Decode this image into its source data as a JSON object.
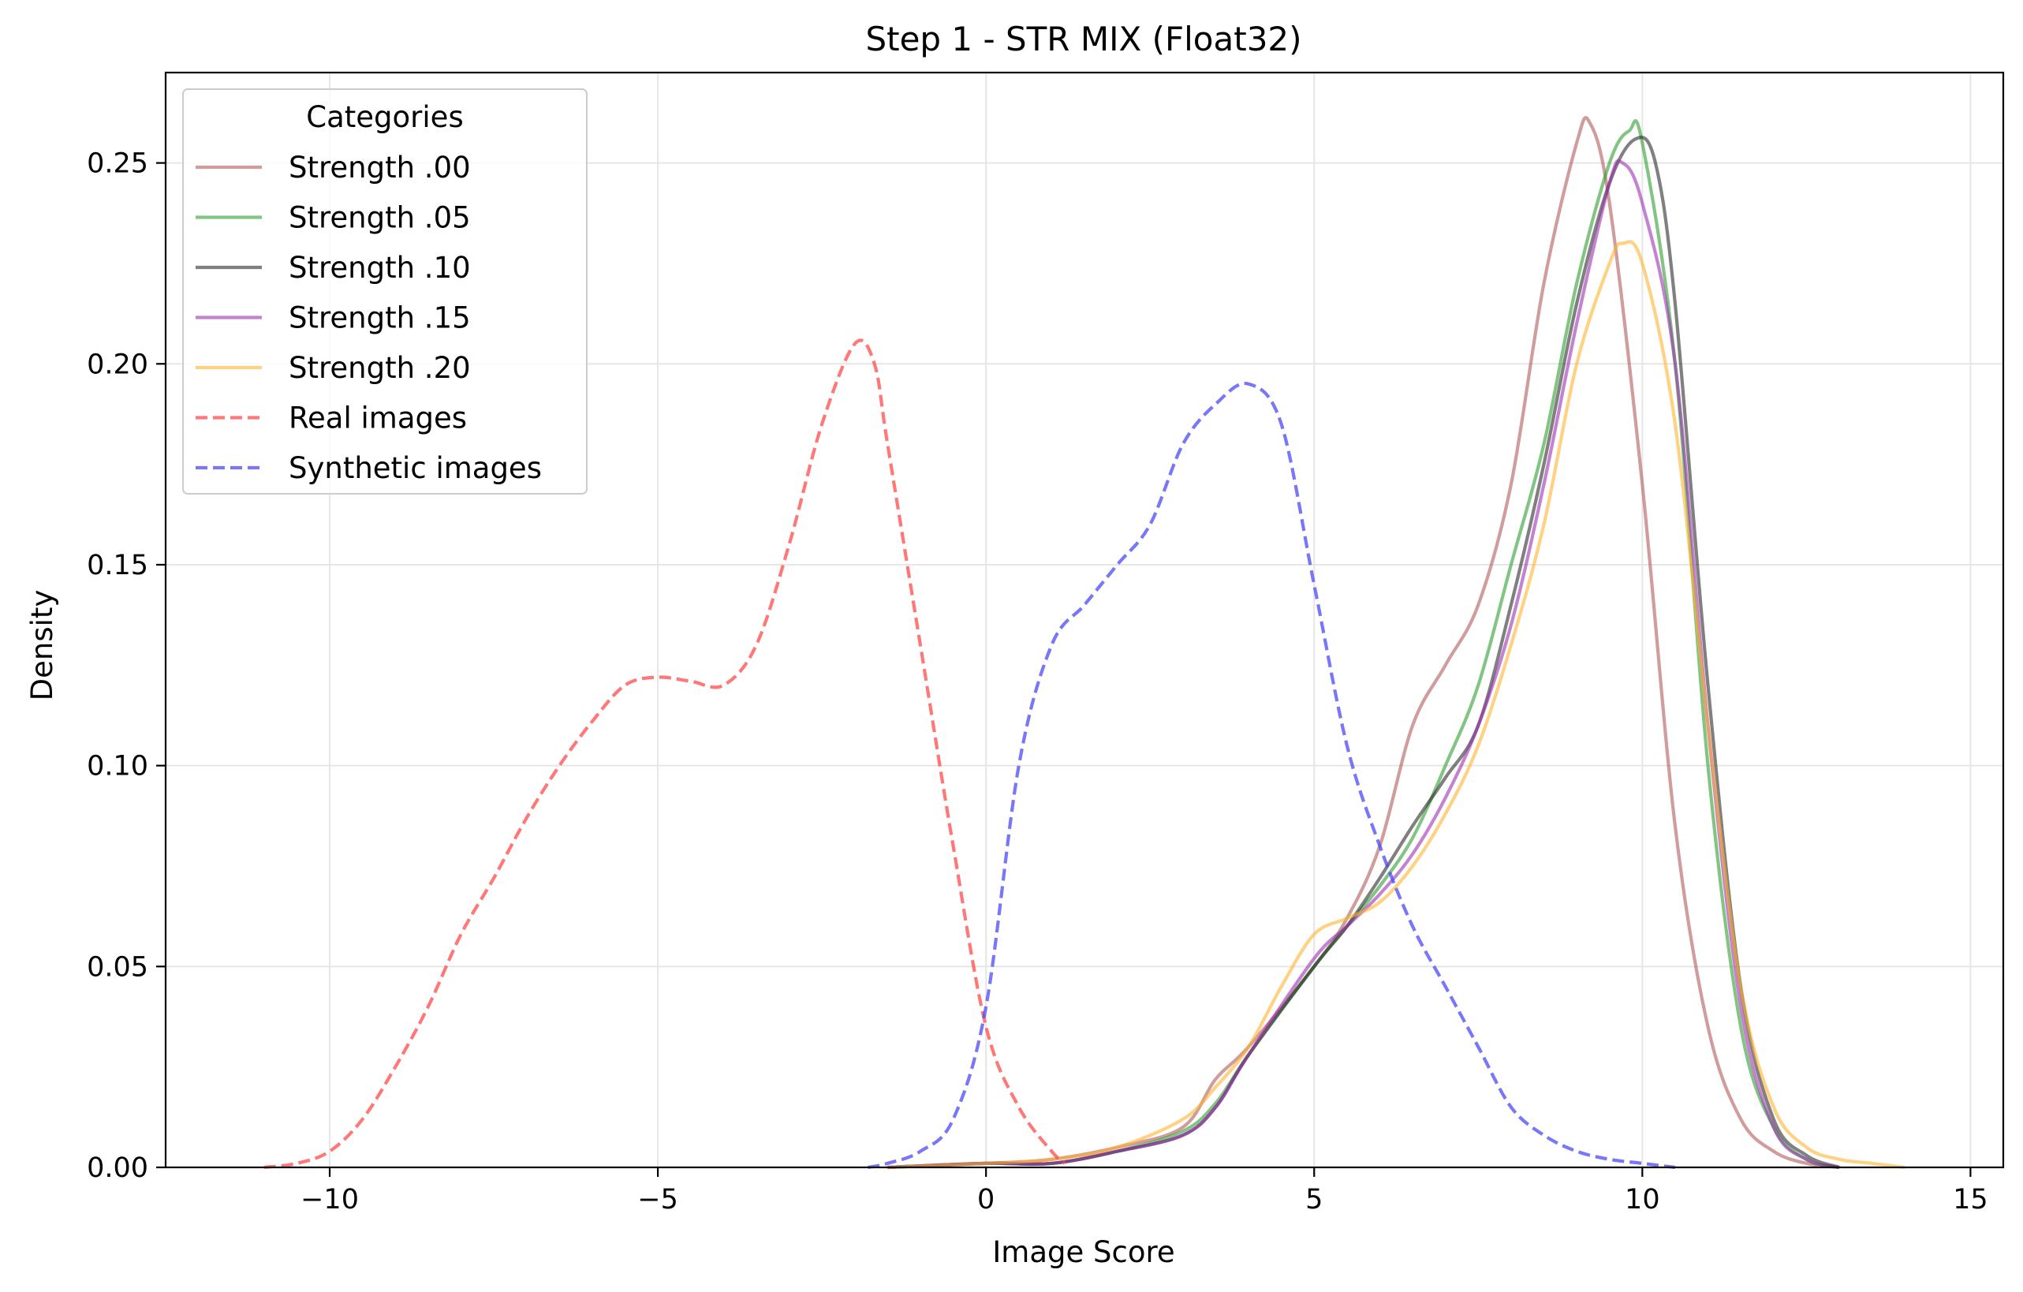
{
  "chart_data": {
    "type": "line",
    "title": "Step 1 - STR MIX (Float32)",
    "xlabel": "Image Score",
    "ylabel": "Density",
    "xlim": [
      -12.5,
      15.5
    ],
    "ylim": [
      0,
      0.2725
    ],
    "x_ticks": [
      -10,
      -5,
      0,
      5,
      10,
      15
    ],
    "x_tick_labels": [
      "−10",
      "−5",
      "0",
      "5",
      "10",
      "15"
    ],
    "y_ticks": [
      0.0,
      0.05,
      0.1,
      0.15,
      0.2,
      0.25
    ],
    "y_tick_labels": [
      "0.00",
      "0.05",
      "0.10",
      "0.15",
      "0.20",
      "0.25"
    ],
    "grid": true,
    "legend": {
      "title": "Categories",
      "placement": "top-left"
    },
    "series": [
      {
        "name": "Strength .00",
        "color": "#b05a5a",
        "dash": "solid",
        "x": [
          -1.5,
          0,
          1,
          2,
          3,
          3.5,
          4,
          5,
          5.5,
          6,
          6.5,
          7,
          7.5,
          8,
          8.5,
          9,
          9.2,
          9.5,
          10,
          10.5,
          11,
          11.5,
          12,
          12.5,
          13
        ],
        "y": [
          0.0,
          0.001,
          0.002,
          0.005,
          0.01,
          0.022,
          0.03,
          0.05,
          0.062,
          0.08,
          0.11,
          0.125,
          0.14,
          0.17,
          0.22,
          0.255,
          0.26,
          0.24,
          0.17,
          0.085,
          0.035,
          0.012,
          0.004,
          0.001,
          0.0
        ]
      },
      {
        "name": "Strength .05",
        "color": "#2e9e2e",
        "dash": "solid",
        "x": [
          -1.5,
          0,
          1,
          2,
          3,
          3.5,
          4,
          5,
          5.5,
          6,
          6.5,
          7,
          7.5,
          8,
          8.5,
          9,
          9.5,
          9.8,
          10,
          10.5,
          11,
          11.5,
          12,
          12.5,
          13
        ],
        "y": [
          0.0,
          0.001,
          0.001,
          0.004,
          0.009,
          0.016,
          0.028,
          0.05,
          0.06,
          0.07,
          0.082,
          0.1,
          0.12,
          0.15,
          0.18,
          0.22,
          0.25,
          0.258,
          0.255,
          0.2,
          0.1,
          0.035,
          0.01,
          0.002,
          0.0
        ]
      },
      {
        "name": "Strength .10",
        "color": "#2b2b2b",
        "dash": "solid",
        "x": [
          -1.5,
          0,
          1,
          2,
          3,
          3.5,
          4,
          5,
          5.5,
          6,
          6.5,
          7,
          7.5,
          8,
          8.5,
          9,
          9.5,
          9.9,
          10.2,
          10.5,
          11,
          11.5,
          12,
          12.5,
          13
        ],
        "y": [
          0.0,
          0.001,
          0.001,
          0.004,
          0.008,
          0.015,
          0.028,
          0.05,
          0.06,
          0.072,
          0.085,
          0.097,
          0.11,
          0.14,
          0.175,
          0.215,
          0.245,
          0.256,
          0.25,
          0.215,
          0.12,
          0.045,
          0.012,
          0.003,
          0.0
        ]
      },
      {
        "name": "Strength .15",
        "color": "#9b30b0",
        "dash": "solid",
        "x": [
          -1.5,
          0,
          1,
          2,
          3,
          3.5,
          4,
          5,
          5.5,
          6,
          6.5,
          7,
          7.5,
          8,
          8.5,
          9,
          9.5,
          9.7,
          10,
          10.5,
          11,
          11.5,
          12,
          12.5,
          13
        ],
        "y": [
          0.0,
          0.001,
          0.001,
          0.004,
          0.008,
          0.015,
          0.028,
          0.052,
          0.06,
          0.068,
          0.078,
          0.092,
          0.11,
          0.135,
          0.17,
          0.21,
          0.245,
          0.25,
          0.24,
          0.2,
          0.11,
          0.04,
          0.01,
          0.002,
          0.0
        ]
      },
      {
        "name": "Strength .20",
        "color": "#ffb22e",
        "dash": "solid",
        "x": [
          -1.5,
          0,
          1,
          2,
          3,
          3.5,
          4,
          4.5,
          5,
          5.5,
          6,
          6.5,
          7,
          7.5,
          8,
          8.5,
          9,
          9.5,
          9.7,
          10,
          10.5,
          11,
          11.5,
          12,
          12.5,
          13,
          13.5,
          14
        ],
        "y": [
          0.0,
          0.001,
          0.002,
          0.005,
          0.012,
          0.02,
          0.03,
          0.045,
          0.058,
          0.062,
          0.066,
          0.075,
          0.088,
          0.105,
          0.13,
          0.16,
          0.2,
          0.225,
          0.23,
          0.225,
          0.185,
          0.11,
          0.045,
          0.015,
          0.005,
          0.002,
          0.001,
          0.0
        ]
      },
      {
        "name": "Real images",
        "color": "#ff4a4a",
        "dash": "dashed",
        "x": [
          -11,
          -10.5,
          -10,
          -9.5,
          -9,
          -8.5,
          -8,
          -7.5,
          -7,
          -6.5,
          -6,
          -5.5,
          -5,
          -4.5,
          -4,
          -3.5,
          -3,
          -2.5,
          -2,
          -1.7,
          -1.5,
          -1.0,
          -0.5,
          0,
          0.5,
          1.0,
          1.2
        ],
        "y": [
          0.0,
          0.001,
          0.004,
          0.012,
          0.025,
          0.04,
          0.058,
          0.072,
          0.087,
          0.1,
          0.111,
          0.12,
          0.122,
          0.121,
          0.12,
          0.13,
          0.155,
          0.185,
          0.205,
          0.2,
          0.18,
          0.13,
          0.08,
          0.035,
          0.015,
          0.004,
          0.001
        ]
      },
      {
        "name": "Synthetic images",
        "color": "#4a4af5",
        "dash": "dashed",
        "x": [
          -1.8,
          -1.5,
          -1,
          -0.5,
          0,
          0.5,
          1.0,
          1.5,
          2,
          2.5,
          3,
          3.5,
          4,
          4.5,
          5,
          5.5,
          6,
          6.5,
          7,
          7.5,
          8,
          8.5,
          9,
          9.5,
          10,
          10.5
        ],
        "y": [
          0.0,
          0.001,
          0.004,
          0.012,
          0.04,
          0.1,
          0.13,
          0.14,
          0.15,
          0.16,
          0.18,
          0.19,
          0.195,
          0.185,
          0.145,
          0.105,
          0.08,
          0.06,
          0.045,
          0.03,
          0.015,
          0.008,
          0.004,
          0.002,
          0.001,
          0.0
        ]
      }
    ]
  }
}
